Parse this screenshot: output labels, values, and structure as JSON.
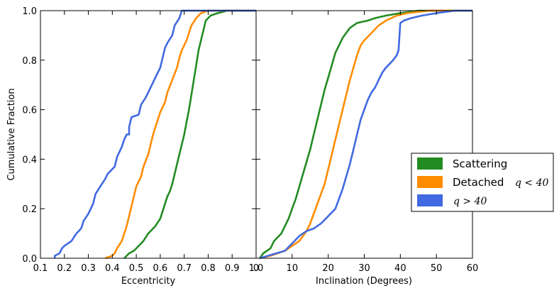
{
  "chart_data": [
    {
      "type": "line",
      "panel": "left",
      "xlabel": "Eccentricity",
      "ylabel": "Cumulative Fraction",
      "xlim": [
        0.1,
        1.0
      ],
      "ylim": [
        0.0,
        1.0
      ],
      "xticks": [
        "0.1",
        "0.2",
        "0.3",
        "0.4",
        "0.5",
        "0.6",
        "0.7",
        "0.8",
        "0.9",
        "1.0"
      ],
      "yticks": [
        "0.0",
        "0.2",
        "0.4",
        "0.6",
        "0.8",
        "1.0"
      ],
      "series": [
        {
          "name": "Scattering",
          "color": "#228b22",
          "points": [
            [
              0.45,
              0.0
            ],
            [
              0.46,
              0.01
            ],
            [
              0.47,
              0.02
            ],
            [
              0.49,
              0.03
            ],
            [
              0.51,
              0.05
            ],
            [
              0.53,
              0.07
            ],
            [
              0.55,
              0.1
            ],
            [
              0.58,
              0.13
            ],
            [
              0.6,
              0.16
            ],
            [
              0.61,
              0.19
            ],
            [
              0.62,
              0.22
            ],
            [
              0.63,
              0.25
            ],
            [
              0.64,
              0.27
            ],
            [
              0.65,
              0.3
            ],
            [
              0.66,
              0.34
            ],
            [
              0.67,
              0.38
            ],
            [
              0.68,
              0.42
            ],
            [
              0.69,
              0.46
            ],
            [
              0.7,
              0.5
            ],
            [
              0.71,
              0.55
            ],
            [
              0.72,
              0.6
            ],
            [
              0.73,
              0.66
            ],
            [
              0.74,
              0.72
            ],
            [
              0.75,
              0.78
            ],
            [
              0.76,
              0.84
            ],
            [
              0.77,
              0.88
            ],
            [
              0.78,
              0.92
            ],
            [
              0.79,
              0.96
            ],
            [
              0.81,
              0.98
            ],
            [
              0.84,
              0.99
            ],
            [
              0.88,
              1.0
            ],
            [
              1.0,
              1.0
            ]
          ]
        },
        {
          "name": "Detached",
          "color": "#ff8c00",
          "points": [
            [
              0.37,
              0.0
            ],
            [
              0.4,
              0.01
            ],
            [
              0.41,
              0.02
            ],
            [
              0.42,
              0.04
            ],
            [
              0.44,
              0.07
            ],
            [
              0.45,
              0.1
            ],
            [
              0.46,
              0.13
            ],
            [
              0.47,
              0.17
            ],
            [
              0.48,
              0.21
            ],
            [
              0.49,
              0.25
            ],
            [
              0.5,
              0.29
            ],
            [
              0.52,
              0.33
            ],
            [
              0.53,
              0.37
            ],
            [
              0.55,
              0.42
            ],
            [
              0.56,
              0.46
            ],
            [
              0.57,
              0.5
            ],
            [
              0.58,
              0.53
            ],
            [
              0.59,
              0.56
            ],
            [
              0.6,
              0.59
            ],
            [
              0.62,
              0.63
            ],
            [
              0.63,
              0.67
            ],
            [
              0.65,
              0.72
            ],
            [
              0.67,
              0.77
            ],
            [
              0.68,
              0.81
            ],
            [
              0.69,
              0.84
            ],
            [
              0.71,
              0.88
            ],
            [
              0.72,
              0.91
            ],
            [
              0.73,
              0.94
            ],
            [
              0.75,
              0.97
            ],
            [
              0.77,
              0.99
            ],
            [
              0.8,
              1.0
            ],
            [
              1.0,
              1.0
            ]
          ]
        },
        {
          "name": "q > 40",
          "color": "#4169e1",
          "points": [
            [
              0.16,
              0.0
            ],
            [
              0.16,
              0.01
            ],
            [
              0.18,
              0.02
            ],
            [
              0.19,
              0.04
            ],
            [
              0.2,
              0.05
            ],
            [
              0.23,
              0.07
            ],
            [
              0.25,
              0.1
            ],
            [
              0.27,
              0.12
            ],
            [
              0.28,
              0.15
            ],
            [
              0.3,
              0.18
            ],
            [
              0.32,
              0.22
            ],
            [
              0.33,
              0.26
            ],
            [
              0.35,
              0.29
            ],
            [
              0.37,
              0.32
            ],
            [
              0.38,
              0.34
            ],
            [
              0.41,
              0.37
            ],
            [
              0.42,
              0.41
            ],
            [
              0.44,
              0.45
            ],
            [
              0.45,
              0.48
            ],
            [
              0.46,
              0.5
            ],
            [
              0.47,
              0.5
            ],
            [
              0.47,
              0.53
            ],
            [
              0.48,
              0.57
            ],
            [
              0.51,
              0.58
            ],
            [
              0.52,
              0.62
            ],
            [
              0.54,
              0.65
            ],
            [
              0.56,
              0.69
            ],
            [
              0.58,
              0.73
            ],
            [
              0.6,
              0.77
            ],
            [
              0.61,
              0.81
            ],
            [
              0.62,
              0.85
            ],
            [
              0.63,
              0.87
            ],
            [
              0.65,
              0.9
            ],
            [
              0.66,
              0.94
            ],
            [
              0.68,
              0.97
            ],
            [
              0.69,
              1.0
            ],
            [
              1.0,
              1.0
            ]
          ]
        }
      ]
    },
    {
      "type": "line",
      "panel": "right",
      "xlabel": "Inclination (Degrees)",
      "ylabel": "",
      "xlim": [
        0,
        60
      ],
      "ylim": [
        0.0,
        1.0
      ],
      "xticks": [
        "0",
        "10",
        "20",
        "30",
        "40",
        "50",
        "60"
      ],
      "series": [
        {
          "name": "Scattering",
          "color": "#228b22",
          "points": [
            [
              1,
              0.0
            ],
            [
              2,
              0.02
            ],
            [
              4,
              0.04
            ],
            [
              5,
              0.07
            ],
            [
              7,
              0.1
            ],
            [
              8,
              0.13
            ],
            [
              9,
              0.16
            ],
            [
              10,
              0.2
            ],
            [
              11,
              0.24
            ],
            [
              12,
              0.29
            ],
            [
              13,
              0.34
            ],
            [
              14,
              0.39
            ],
            [
              15,
              0.44
            ],
            [
              16,
              0.5
            ],
            [
              17,
              0.56
            ],
            [
              18,
              0.62
            ],
            [
              19,
              0.68
            ],
            [
              20,
              0.73
            ],
            [
              21,
              0.78
            ],
            [
              22,
              0.83
            ],
            [
              23,
              0.86
            ],
            [
              24,
              0.89
            ],
            [
              25,
              0.91
            ],
            [
              26,
              0.93
            ],
            [
              28,
              0.95
            ],
            [
              31,
              0.96
            ],
            [
              33,
              0.97
            ],
            [
              36,
              0.98
            ],
            [
              40,
              0.99
            ],
            [
              45,
              1.0
            ],
            [
              60,
              1.0
            ]
          ]
        },
        {
          "name": "Detached",
          "color": "#ff8c00",
          "points": [
            [
              1,
              0.0
            ],
            [
              4,
              0.01
            ],
            [
              6,
              0.02
            ],
            [
              8,
              0.03
            ],
            [
              10,
              0.05
            ],
            [
              12,
              0.07
            ],
            [
              13,
              0.09
            ],
            [
              14,
              0.11
            ],
            [
              15,
              0.14
            ],
            [
              16,
              0.18
            ],
            [
              17,
              0.22
            ],
            [
              18,
              0.26
            ],
            [
              19,
              0.3
            ],
            [
              20,
              0.36
            ],
            [
              21,
              0.42
            ],
            [
              22,
              0.48
            ],
            [
              23,
              0.54
            ],
            [
              24,
              0.6
            ],
            [
              25,
              0.66
            ],
            [
              26,
              0.72
            ],
            [
              27,
              0.77
            ],
            [
              28,
              0.82
            ],
            [
              29,
              0.86
            ],
            [
              30,
              0.88
            ],
            [
              32,
              0.91
            ],
            [
              34,
              0.94
            ],
            [
              36,
              0.96
            ],
            [
              39,
              0.98
            ],
            [
              42,
              0.99
            ],
            [
              48,
              1.0
            ],
            [
              60,
              1.0
            ]
          ]
        },
        {
          "name": "q > 40",
          "color": "#4169e1",
          "points": [
            [
              1,
              0.0
            ],
            [
              8,
              0.03
            ],
            [
              10,
              0.06
            ],
            [
              12,
              0.09
            ],
            [
              14,
              0.11
            ],
            [
              16,
              0.12
            ],
            [
              18,
              0.14
            ],
            [
              20,
              0.17
            ],
            [
              22,
              0.2
            ],
            [
              23,
              0.24
            ],
            [
              24,
              0.28
            ],
            [
              25,
              0.33
            ],
            [
              26,
              0.38
            ],
            [
              27,
              0.44
            ],
            [
              28,
              0.5
            ],
            [
              29,
              0.56
            ],
            [
              30,
              0.6
            ],
            [
              31,
              0.64
            ],
            [
              32,
              0.67
            ],
            [
              33,
              0.69
            ],
            [
              34,
              0.72
            ],
            [
              35,
              0.75
            ],
            [
              36,
              0.77
            ],
            [
              38,
              0.8
            ],
            [
              39,
              0.82
            ],
            [
              39.5,
              0.84
            ],
            [
              40,
              0.95
            ],
            [
              41,
              0.96
            ],
            [
              43,
              0.97
            ],
            [
              46,
              0.98
            ],
            [
              50,
              0.99
            ],
            [
              55,
              1.0
            ],
            [
              60,
              1.0
            ]
          ]
        }
      ]
    }
  ],
  "legend": {
    "items": [
      {
        "label": "Scattering",
        "math": "",
        "color": "#228b22"
      },
      {
        "label": "Detached",
        "math": "q < 40",
        "color": "#ff8c00"
      },
      {
        "label": "",
        "math": "q > 40",
        "color": "#4169e1"
      }
    ]
  }
}
